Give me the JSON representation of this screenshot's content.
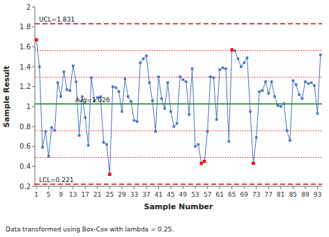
{
  "chart_data": {
    "type": "line",
    "xlabel": "Sample Number",
    "ylabel": "Sample Result",
    "footnote": "Data transformed using Box-Cox with lambda = 0.25.",
    "xlim": [
      0.5,
      94.5
    ],
    "xticks": [
      1,
      5,
      9,
      13,
      17,
      21,
      25,
      29,
      33,
      37,
      41,
      45,
      49,
      53,
      57,
      61,
      65,
      69,
      73,
      77,
      81,
      85,
      89,
      93
    ],
    "ylim": [
      0.2,
      2.0
    ],
    "yticks": [
      0.2,
      0.4,
      0.6,
      0.8,
      1,
      1.2,
      1.4,
      1.6,
      1.8,
      2
    ],
    "grid": false,
    "x": [
      1,
      2,
      3,
      4,
      5,
      6,
      7,
      8,
      9,
      10,
      11,
      12,
      13,
      14,
      15,
      16,
      17,
      18,
      19,
      20,
      21,
      22,
      23,
      24,
      25,
      26,
      27,
      28,
      29,
      30,
      31,
      32,
      33,
      34,
      35,
      36,
      37,
      38,
      39,
      40,
      41,
      42,
      43,
      44,
      45,
      46,
      47,
      48,
      49,
      50,
      51,
      52,
      53,
      54,
      55,
      56,
      57,
      58,
      59,
      60,
      61,
      62,
      63,
      64,
      65,
      66,
      67,
      68,
      69,
      70,
      71,
      72,
      73,
      74,
      75,
      76,
      77,
      78,
      79,
      80,
      81,
      82,
      83,
      84,
      85,
      86,
      87,
      88,
      89,
      90,
      91,
      92,
      93,
      94
    ],
    "series": [
      {
        "color": "#4472C4",
        "marker": "square",
        "line_style": "solid",
        "values": [
          1.67,
          1.4,
          0.59,
          0.75,
          0.5,
          0.79,
          0.76,
          1.24,
          1.1,
          1.35,
          1.17,
          1.16,
          1.41,
          1.25,
          0.71,
          1.1,
          0.89,
          0.61,
          1.29,
          1.06,
          1.09,
          1.1,
          0.64,
          0.62,
          0.32,
          1.2,
          1.19,
          1.15,
          0.95,
          1.28,
          1.1,
          1.05,
          0.86,
          0.85,
          1.44,
          1.48,
          1.51,
          1.24,
          1.06,
          0.75,
          1.3,
          1.08,
          0.98,
          1.24,
          0.95,
          0.8,
          0.83,
          1.3,
          1.27,
          1.25,
          0.92,
          1.38,
          0.6,
          0.62,
          0.43,
          0.45,
          0.75,
          1.3,
          1.29,
          0.87,
          1.37,
          1.39,
          1.38,
          0.65,
          1.57,
          1.56,
          1.48,
          1.4,
          1.44,
          1.49,
          0.95,
          0.43,
          0.69,
          1.15,
          1.16,
          1.25,
          1.13,
          1.25,
          1.1,
          1.01,
          1.0,
          1.03,
          0.76,
          0.66,
          1.26,
          1.22,
          1.12,
          1.08,
          1.25,
          1.23,
          1.24,
          1.21,
          0.93,
          1.52
        ],
        "colors": [
          "#FF0000",
          "#4472C4",
          "#4472C4",
          "#4472C4",
          "#4472C4",
          "#4472C4",
          "#4472C4",
          "#4472C4",
          "#4472C4",
          "#4472C4",
          "#4472C4",
          "#4472C4",
          "#4472C4",
          "#4472C4",
          "#4472C4",
          "#4472C4",
          "#4472C4",
          "#4472C4",
          "#4472C4",
          "#4472C4",
          "#4472C4",
          "#4472C4",
          "#4472C4",
          "#4472C4",
          "#FF0000",
          "#4472C4",
          "#4472C4",
          "#4472C4",
          "#4472C4",
          "#4472C4",
          "#4472C4",
          "#4472C4",
          "#4472C4",
          "#4472C4",
          "#4472C4",
          "#4472C4",
          "#4472C4",
          "#4472C4",
          "#4472C4",
          "#4472C4",
          "#4472C4",
          "#4472C4",
          "#4472C4",
          "#4472C4",
          "#4472C4",
          "#4472C4",
          "#4472C4",
          "#4472C4",
          "#4472C4",
          "#4472C4",
          "#4472C4",
          "#4472C4",
          "#4472C4",
          "#4472C4",
          "#FF0000",
          "#FF0000",
          "#4472C4",
          "#4472C4",
          "#4472C4",
          "#4472C4",
          "#4472C4",
          "#4472C4",
          "#4472C4",
          "#4472C4",
          "#FF0000",
          "#4472C4",
          "#4472C4",
          "#4472C4",
          "#4472C4",
          "#4472C4",
          "#4472C4",
          "#FF0000",
          "#4472C4",
          "#4472C4",
          "#4472C4",
          "#4472C4",
          "#4472C4",
          "#4472C4",
          "#4472C4",
          "#4472C4",
          "#4472C4",
          "#4472C4",
          "#4472C4",
          "#4472C4",
          "#4472C4",
          "#4472C4",
          "#4472C4",
          "#4472C4",
          "#4472C4",
          "#4472C4",
          "#4472C4",
          "#4472C4",
          "#4472C4",
          "#4472C4"
        ]
      }
    ],
    "reference_lines": [
      {
        "value": 1.563,
        "color": "#FF0000",
        "line_style": "dotted"
      },
      {
        "value": 1.294,
        "color": "#FF0000",
        "line_style": "dotted"
      },
      {
        "value": 0.758,
        "color": "#FF0000",
        "line_style": "dotted"
      },
      {
        "value": 0.489,
        "color": "#FF0000",
        "line_style": "dotted"
      },
      {
        "value": 1.831,
        "label": "UCL=1.831",
        "color": "#CC0000",
        "line_style": "dashed"
      },
      {
        "value": 0.221,
        "label": "LCL=0.221",
        "color": "#CC0000",
        "line_style": "dashed"
      },
      {
        "value": 1.026,
        "label": "Avg=1.026",
        "color": "#008000",
        "line_style": "solid"
      }
    ]
  }
}
